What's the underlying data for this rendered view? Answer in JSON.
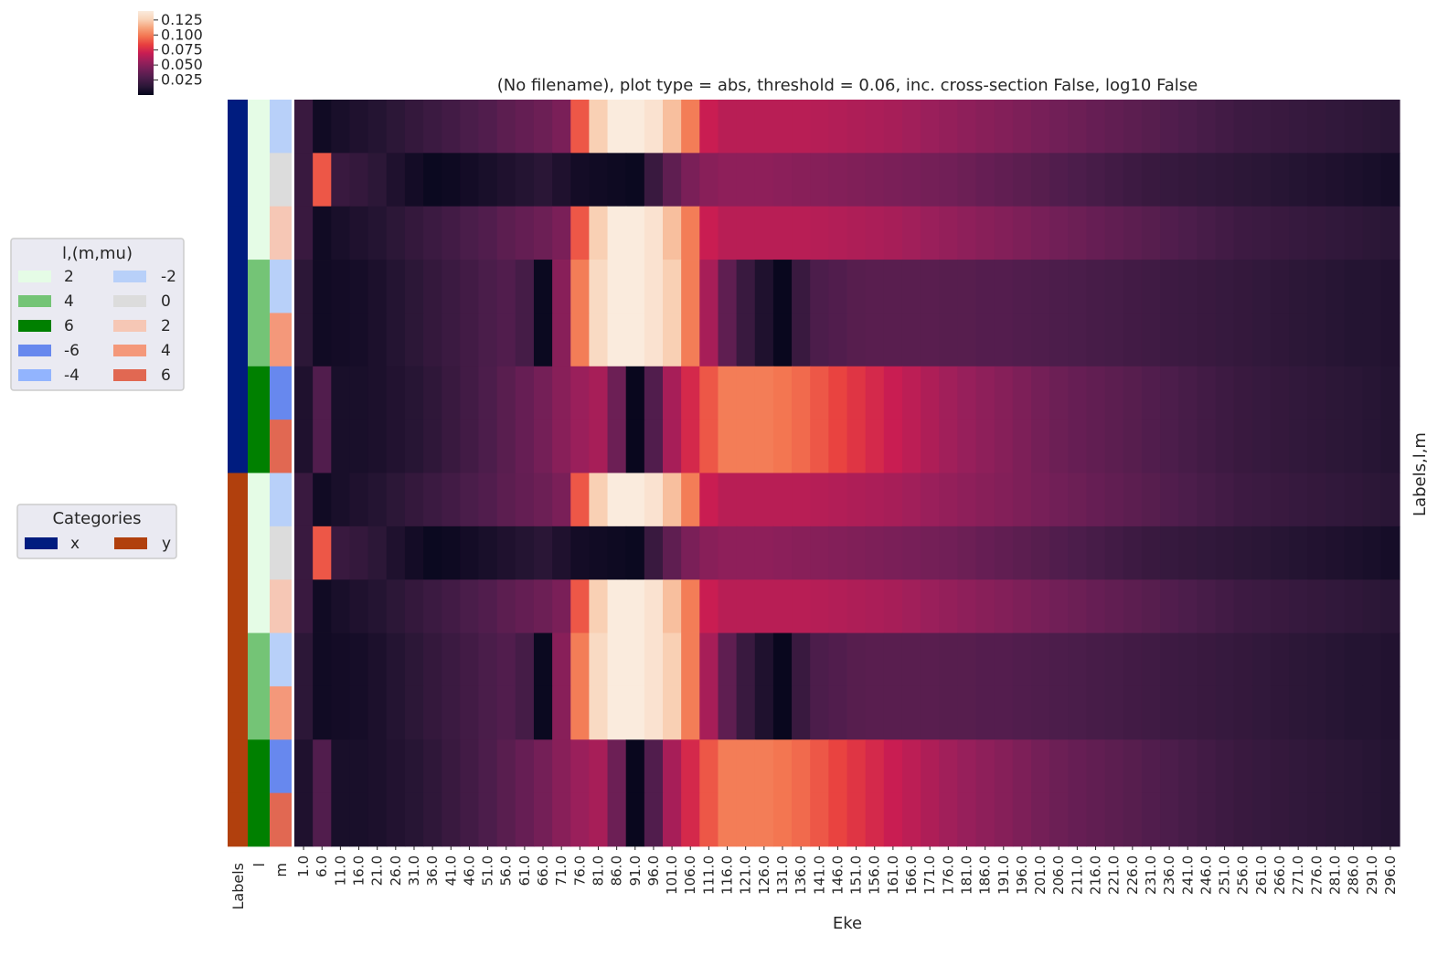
{
  "chart_data": {
    "type": "heatmap",
    "title": "(No filename), plot type = abs, threshold = 0.06, inc. cross-section False, log10 False",
    "xlabel": "Eke",
    "ylabel": "Labels,l,m",
    "x_start": 1.0,
    "x_step": 5.0,
    "x_ticks": [
      "1.0",
      "6.0",
      "11.0",
      "16.0",
      "21.0",
      "26.0",
      "31.0",
      "36.0",
      "41.0",
      "46.0",
      "51.0",
      "56.0",
      "61.0",
      "66.0",
      "71.0",
      "76.0",
      "81.0",
      "86.0",
      "91.0",
      "96.0",
      "101.0",
      "106.0",
      "111.0",
      "116.0",
      "121.0",
      "126.0",
      "131.0",
      "136.0",
      "141.0",
      "146.0",
      "151.0",
      "156.0",
      "161.0",
      "166.0",
      "171.0",
      "176.0",
      "181.0",
      "186.0",
      "191.0",
      "196.0",
      "201.0",
      "206.0",
      "211.0",
      "216.0",
      "221.0",
      "226.0",
      "231.0",
      "236.0",
      "241.0",
      "246.0",
      "251.0",
      "256.0",
      "261.0",
      "266.0",
      "271.0",
      "276.0",
      "281.0",
      "286.0",
      "291.0",
      "296.0"
    ],
    "row_label_columns": [
      "Labels",
      "l",
      "m"
    ],
    "colorbar": {
      "ticks": [
        0.025,
        0.05,
        0.075,
        0.1,
        0.125
      ],
      "tick_labels": [
        "0.025",
        "0.050",
        "0.075",
        "0.100",
        "0.125"
      ],
      "vmin": 0.0,
      "vmax": 0.14
    },
    "colormap": [
      "#03051a",
      "#2a1636",
      "#4c1d4b",
      "#711f57",
      "#9a1f5b",
      "#c91d52",
      "#e83f3f",
      "#f37651",
      "#f6a47c",
      "#f9d3b8",
      "#faebdd"
    ],
    "rows": [
      {
        "category": "x",
        "l": 2,
        "m": -2,
        "values": [
          0.02,
          0.005,
          0.008,
          0.01,
          0.012,
          0.015,
          0.018,
          0.021,
          0.024,
          0.027,
          0.03,
          0.034,
          0.037,
          0.04,
          0.045,
          0.09,
          0.125,
          0.14,
          0.14,
          0.135,
          0.12,
          0.1,
          0.07,
          0.065,
          0.065,
          0.065,
          0.065,
          0.065,
          0.064,
          0.063,
          0.062,
          0.061,
          0.06,
          0.058,
          0.056,
          0.054,
          0.052,
          0.05,
          0.048,
          0.046,
          0.044,
          0.042,
          0.04,
          0.038,
          0.036,
          0.034,
          0.032,
          0.03,
          0.028,
          0.026,
          0.024,
          0.022,
          0.021,
          0.02,
          0.019,
          0.018,
          0.017,
          0.016,
          0.015,
          0.014
        ]
      },
      {
        "category": "x",
        "l": 2,
        "m": 0,
        "values": [
          0.02,
          0.09,
          0.02,
          0.018,
          0.015,
          0.01,
          0.006,
          0.003,
          0.004,
          0.006,
          0.008,
          0.01,
          0.012,
          0.014,
          0.01,
          0.006,
          0.005,
          0.004,
          0.003,
          0.02,
          0.035,
          0.045,
          0.05,
          0.052,
          0.052,
          0.052,
          0.051,
          0.05,
          0.049,
          0.048,
          0.047,
          0.046,
          0.045,
          0.044,
          0.043,
          0.042,
          0.04,
          0.038,
          0.036,
          0.034,
          0.032,
          0.03,
          0.028,
          0.026,
          0.024,
          0.022,
          0.02,
          0.019,
          0.018,
          0.017,
          0.016,
          0.015,
          0.014,
          0.013,
          0.012,
          0.011,
          0.01,
          0.009,
          0.008,
          0.007
        ]
      },
      {
        "category": "x",
        "l": 2,
        "m": 2,
        "values": [
          0.02,
          0.005,
          0.008,
          0.01,
          0.012,
          0.015,
          0.018,
          0.021,
          0.024,
          0.027,
          0.03,
          0.034,
          0.037,
          0.04,
          0.045,
          0.09,
          0.125,
          0.14,
          0.14,
          0.135,
          0.12,
          0.1,
          0.07,
          0.065,
          0.065,
          0.065,
          0.065,
          0.065,
          0.064,
          0.063,
          0.062,
          0.061,
          0.06,
          0.058,
          0.056,
          0.054,
          0.052,
          0.05,
          0.048,
          0.046,
          0.044,
          0.042,
          0.04,
          0.038,
          0.036,
          0.034,
          0.032,
          0.03,
          0.028,
          0.026,
          0.024,
          0.022,
          0.021,
          0.02,
          0.019,
          0.018,
          0.017,
          0.016,
          0.015,
          0.014
        ]
      },
      {
        "category": "x",
        "l": 4,
        "m": -2,
        "values": [
          0.015,
          0.005,
          0.006,
          0.007,
          0.009,
          0.012,
          0.015,
          0.018,
          0.021,
          0.024,
          0.027,
          0.03,
          0.025,
          0.003,
          0.05,
          0.1,
          0.13,
          0.14,
          0.14,
          0.135,
          0.125,
          0.1,
          0.06,
          0.035,
          0.02,
          0.01,
          0.002,
          0.02,
          0.028,
          0.03,
          0.032,
          0.033,
          0.033,
          0.033,
          0.033,
          0.032,
          0.032,
          0.031,
          0.031,
          0.03,
          0.029,
          0.028,
          0.027,
          0.026,
          0.025,
          0.024,
          0.023,
          0.022,
          0.021,
          0.02,
          0.019,
          0.018,
          0.017,
          0.016,
          0.015,
          0.014,
          0.013,
          0.012,
          0.012,
          0.011
        ]
      },
      {
        "category": "x",
        "l": 4,
        "m": 4,
        "values": [
          0.015,
          0.005,
          0.006,
          0.007,
          0.009,
          0.012,
          0.015,
          0.018,
          0.021,
          0.024,
          0.027,
          0.03,
          0.025,
          0.003,
          0.05,
          0.1,
          0.13,
          0.14,
          0.14,
          0.135,
          0.125,
          0.1,
          0.06,
          0.035,
          0.02,
          0.01,
          0.002,
          0.02,
          0.028,
          0.03,
          0.032,
          0.033,
          0.033,
          0.033,
          0.033,
          0.032,
          0.032,
          0.031,
          0.031,
          0.03,
          0.029,
          0.028,
          0.027,
          0.026,
          0.025,
          0.024,
          0.023,
          0.022,
          0.021,
          0.02,
          0.019,
          0.018,
          0.017,
          0.016,
          0.015,
          0.014,
          0.013,
          0.012,
          0.012,
          0.011
        ]
      },
      {
        "category": "x",
        "l": 6,
        "m": -6,
        "values": [
          0.01,
          0.03,
          0.008,
          0.008,
          0.009,
          0.011,
          0.013,
          0.016,
          0.02,
          0.024,
          0.028,
          0.033,
          0.038,
          0.043,
          0.05,
          0.056,
          0.06,
          0.04,
          0.002,
          0.03,
          0.06,
          0.075,
          0.09,
          0.1,
          0.1,
          0.1,
          0.098,
          0.095,
          0.09,
          0.085,
          0.08,
          0.075,
          0.07,
          0.066,
          0.062,
          0.058,
          0.055,
          0.052,
          0.049,
          0.046,
          0.043,
          0.04,
          0.038,
          0.036,
          0.034,
          0.032,
          0.03,
          0.028,
          0.026,
          0.024,
          0.022,
          0.02,
          0.019,
          0.018,
          0.017,
          0.016,
          0.015,
          0.014,
          0.013,
          0.012
        ]
      },
      {
        "category": "x",
        "l": 6,
        "m": 6,
        "values": [
          0.01,
          0.03,
          0.008,
          0.008,
          0.009,
          0.011,
          0.013,
          0.016,
          0.02,
          0.024,
          0.028,
          0.033,
          0.038,
          0.043,
          0.05,
          0.056,
          0.06,
          0.04,
          0.002,
          0.03,
          0.06,
          0.075,
          0.09,
          0.1,
          0.1,
          0.1,
          0.098,
          0.095,
          0.09,
          0.085,
          0.08,
          0.075,
          0.07,
          0.066,
          0.062,
          0.058,
          0.055,
          0.052,
          0.049,
          0.046,
          0.043,
          0.04,
          0.038,
          0.036,
          0.034,
          0.032,
          0.03,
          0.028,
          0.026,
          0.024,
          0.022,
          0.02,
          0.019,
          0.018,
          0.017,
          0.016,
          0.015,
          0.014,
          0.013,
          0.012
        ]
      },
      {
        "category": "y",
        "l": 2,
        "m": -2,
        "values": [
          0.02,
          0.005,
          0.008,
          0.01,
          0.012,
          0.015,
          0.018,
          0.021,
          0.024,
          0.027,
          0.03,
          0.034,
          0.037,
          0.04,
          0.045,
          0.09,
          0.125,
          0.14,
          0.14,
          0.135,
          0.12,
          0.1,
          0.07,
          0.065,
          0.065,
          0.065,
          0.065,
          0.065,
          0.064,
          0.063,
          0.062,
          0.061,
          0.06,
          0.058,
          0.056,
          0.054,
          0.052,
          0.05,
          0.048,
          0.046,
          0.044,
          0.042,
          0.04,
          0.038,
          0.036,
          0.034,
          0.032,
          0.03,
          0.028,
          0.026,
          0.024,
          0.022,
          0.021,
          0.02,
          0.019,
          0.018,
          0.017,
          0.016,
          0.015,
          0.014
        ]
      },
      {
        "category": "y",
        "l": 2,
        "m": 0,
        "values": [
          0.02,
          0.09,
          0.02,
          0.018,
          0.015,
          0.01,
          0.006,
          0.003,
          0.004,
          0.006,
          0.008,
          0.01,
          0.012,
          0.014,
          0.01,
          0.006,
          0.005,
          0.004,
          0.003,
          0.02,
          0.035,
          0.045,
          0.05,
          0.052,
          0.052,
          0.052,
          0.051,
          0.05,
          0.049,
          0.048,
          0.047,
          0.046,
          0.045,
          0.044,
          0.043,
          0.042,
          0.04,
          0.038,
          0.036,
          0.034,
          0.032,
          0.03,
          0.028,
          0.026,
          0.024,
          0.022,
          0.02,
          0.019,
          0.018,
          0.017,
          0.016,
          0.015,
          0.014,
          0.013,
          0.012,
          0.011,
          0.01,
          0.009,
          0.008,
          0.007
        ]
      },
      {
        "category": "y",
        "l": 2,
        "m": 2,
        "values": [
          0.02,
          0.005,
          0.008,
          0.01,
          0.012,
          0.015,
          0.018,
          0.021,
          0.024,
          0.027,
          0.03,
          0.034,
          0.037,
          0.04,
          0.045,
          0.09,
          0.125,
          0.14,
          0.14,
          0.135,
          0.12,
          0.1,
          0.07,
          0.065,
          0.065,
          0.065,
          0.065,
          0.065,
          0.064,
          0.063,
          0.062,
          0.061,
          0.06,
          0.058,
          0.056,
          0.054,
          0.052,
          0.05,
          0.048,
          0.046,
          0.044,
          0.042,
          0.04,
          0.038,
          0.036,
          0.034,
          0.032,
          0.03,
          0.028,
          0.026,
          0.024,
          0.022,
          0.021,
          0.02,
          0.019,
          0.018,
          0.017,
          0.016,
          0.015,
          0.014
        ]
      },
      {
        "category": "y",
        "l": 4,
        "m": -2,
        "values": [
          0.015,
          0.005,
          0.006,
          0.007,
          0.009,
          0.012,
          0.015,
          0.018,
          0.021,
          0.024,
          0.027,
          0.03,
          0.025,
          0.003,
          0.05,
          0.1,
          0.13,
          0.14,
          0.14,
          0.135,
          0.125,
          0.1,
          0.06,
          0.035,
          0.02,
          0.01,
          0.002,
          0.02,
          0.028,
          0.03,
          0.032,
          0.033,
          0.033,
          0.033,
          0.033,
          0.032,
          0.032,
          0.031,
          0.031,
          0.03,
          0.029,
          0.028,
          0.027,
          0.026,
          0.025,
          0.024,
          0.023,
          0.022,
          0.021,
          0.02,
          0.019,
          0.018,
          0.017,
          0.016,
          0.015,
          0.014,
          0.013,
          0.012,
          0.012,
          0.011
        ]
      },
      {
        "category": "y",
        "l": 4,
        "m": 4,
        "values": [
          0.015,
          0.005,
          0.006,
          0.007,
          0.009,
          0.012,
          0.015,
          0.018,
          0.021,
          0.024,
          0.027,
          0.03,
          0.025,
          0.003,
          0.05,
          0.1,
          0.13,
          0.14,
          0.14,
          0.135,
          0.125,
          0.1,
          0.06,
          0.035,
          0.02,
          0.01,
          0.002,
          0.02,
          0.028,
          0.03,
          0.032,
          0.033,
          0.033,
          0.033,
          0.033,
          0.032,
          0.032,
          0.031,
          0.031,
          0.03,
          0.029,
          0.028,
          0.027,
          0.026,
          0.025,
          0.024,
          0.023,
          0.022,
          0.021,
          0.02,
          0.019,
          0.018,
          0.017,
          0.016,
          0.015,
          0.014,
          0.013,
          0.012,
          0.012,
          0.011
        ]
      },
      {
        "category": "y",
        "l": 6,
        "m": -6,
        "values": [
          0.01,
          0.03,
          0.008,
          0.008,
          0.009,
          0.011,
          0.013,
          0.016,
          0.02,
          0.024,
          0.028,
          0.033,
          0.038,
          0.043,
          0.05,
          0.056,
          0.06,
          0.04,
          0.002,
          0.03,
          0.06,
          0.075,
          0.09,
          0.1,
          0.1,
          0.1,
          0.098,
          0.095,
          0.09,
          0.085,
          0.08,
          0.075,
          0.07,
          0.066,
          0.062,
          0.058,
          0.055,
          0.052,
          0.049,
          0.046,
          0.043,
          0.04,
          0.038,
          0.036,
          0.034,
          0.032,
          0.03,
          0.028,
          0.026,
          0.024,
          0.022,
          0.02,
          0.019,
          0.018,
          0.017,
          0.016,
          0.015,
          0.014,
          0.013,
          0.012
        ]
      },
      {
        "category": "y",
        "l": 6,
        "m": 6,
        "values": [
          0.01,
          0.03,
          0.008,
          0.008,
          0.009,
          0.011,
          0.013,
          0.016,
          0.02,
          0.024,
          0.028,
          0.033,
          0.038,
          0.043,
          0.05,
          0.056,
          0.06,
          0.04,
          0.002,
          0.03,
          0.06,
          0.075,
          0.09,
          0.1,
          0.1,
          0.1,
          0.098,
          0.095,
          0.09,
          0.085,
          0.08,
          0.075,
          0.07,
          0.066,
          0.062,
          0.058,
          0.055,
          0.052,
          0.049,
          0.046,
          0.043,
          0.04,
          0.038,
          0.036,
          0.034,
          0.032,
          0.03,
          0.028,
          0.026,
          0.024,
          0.022,
          0.02,
          0.019,
          0.018,
          0.017,
          0.016,
          0.015,
          0.014,
          0.013,
          0.012
        ]
      }
    ],
    "legends": [
      {
        "title": "l,(m,mu)",
        "columns": 2,
        "entries": [
          {
            "label": "2",
            "color": "#e5fce6"
          },
          {
            "label": "-2",
            "color": "#b8d0f9"
          },
          {
            "label": "4",
            "color": "#74c476"
          },
          {
            "label": "0",
            "color": "#dcdcdc"
          },
          {
            "label": "6",
            "color": "#008000"
          },
          {
            "label": "2",
            "color": "#f6c7b5"
          },
          {
            "label": "-6",
            "color": "#6788ee"
          },
          {
            "label": "4",
            "color": "#f4987a"
          },
          {
            "label": "-4",
            "color": "#92b4fe"
          },
          {
            "label": "6",
            "color": "#e16852"
          }
        ]
      },
      {
        "title": "Categories",
        "columns": 2,
        "entries": [
          {
            "label": "x",
            "color": "#001c7f"
          },
          {
            "label": "y",
            "color": "#b1400d"
          }
        ]
      }
    ]
  }
}
